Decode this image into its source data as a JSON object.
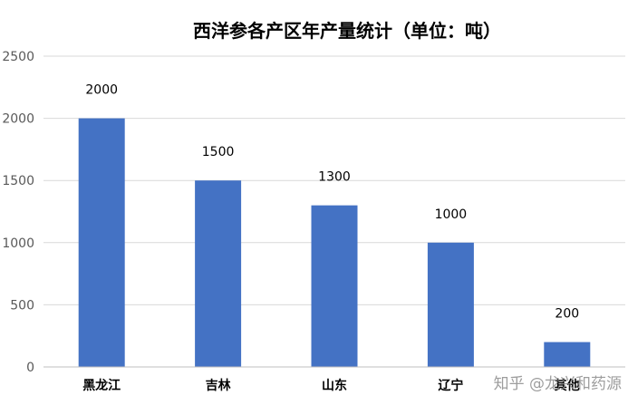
{
  "chart_data": {
    "type": "bar",
    "title": "西洋参各产区年产量统计（单位：吨）",
    "categories": [
      "黑龙江",
      "吉林",
      "山东",
      "辽宁",
      "其他"
    ],
    "values": [
      2000,
      1500,
      1300,
      1000,
      200
    ],
    "data_labels": [
      "2000",
      "1500",
      "1300",
      "1000",
      "200"
    ],
    "ylim": [
      0,
      2500
    ],
    "yticks": [
      0,
      500,
      1000,
      1500,
      2000,
      2500
    ],
    "ytick_labels": [
      "0",
      "500",
      "1000",
      "1500",
      "2000",
      "2500"
    ],
    "xlabel": "",
    "ylabel": "",
    "grid": true,
    "legend": false,
    "bar_color": "#4472C4",
    "grid_color": "#D9D9D9"
  },
  "watermark": "知乎 @龙兴和药源"
}
